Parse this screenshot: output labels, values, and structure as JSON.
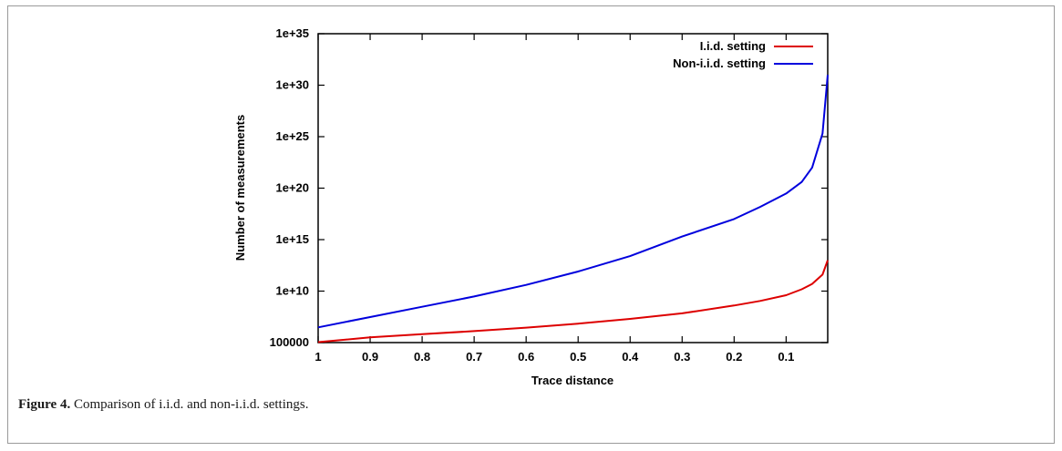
{
  "caption": {
    "label": "Figure 4.",
    "text": " Comparison of i.i.d. and non-i.i.d. settings."
  },
  "chart_data": {
    "type": "line",
    "title": "",
    "xlabel": "Trace distance",
    "ylabel": "Number of measurements",
    "x_reversed": true,
    "xlim": [
      1.0,
      0.02
    ],
    "xticks": [
      {
        "value": 1.0,
        "label": "1"
      },
      {
        "value": 0.9,
        "label": "0.9"
      },
      {
        "value": 0.8,
        "label": "0.8"
      },
      {
        "value": 0.7,
        "label": "0.7"
      },
      {
        "value": 0.6,
        "label": "0.6"
      },
      {
        "value": 0.5,
        "label": "0.5"
      },
      {
        "value": 0.4,
        "label": "0.4"
      },
      {
        "value": 0.3,
        "label": "0.3"
      },
      {
        "value": 0.2,
        "label": "0.2"
      },
      {
        "value": 0.1,
        "label": "0.1"
      }
    ],
    "y_scale": "log",
    "ylim": [
      100000,
      1e+35
    ],
    "yticks": [
      {
        "value": 100000,
        "label": "100000"
      },
      {
        "value": 10000000000.0,
        "label": "1e+10"
      },
      {
        "value": 1000000000000000.0,
        "label": "1e+15"
      },
      {
        "value": 1e+20,
        "label": "1e+20"
      },
      {
        "value": 1e+25,
        "label": "1e+25"
      },
      {
        "value": 1e+30,
        "label": "1e+30"
      },
      {
        "value": 1e+35,
        "label": "1e+35"
      }
    ],
    "legend_position": "top-right",
    "grid": false,
    "series": [
      {
        "name": "I.i.d. setting",
        "color": "#dd0000",
        "x": [
          1.0,
          0.9,
          0.8,
          0.7,
          0.6,
          0.5,
          0.4,
          0.3,
          0.2,
          0.15,
          0.1,
          0.07,
          0.05,
          0.03,
          0.02
        ],
        "y": [
          110000.0,
          320000.0,
          650000.0,
          1300000.0,
          2800000.0,
          7000000.0,
          20000000.0,
          70000000.0,
          400000000.0,
          1100000000.0,
          4000000000.0,
          15000000000.0,
          50000000000.0,
          400000000000.0,
          10000000000000.0
        ]
      },
      {
        "name": "Non-i.i.d. setting",
        "color": "#0000dd",
        "x": [
          1.0,
          0.9,
          0.8,
          0.7,
          0.6,
          0.5,
          0.4,
          0.3,
          0.2,
          0.15,
          0.1,
          0.07,
          0.05,
          0.03,
          0.02
        ],
        "y": [
          3000000.0,
          30000000.0,
          300000000.0,
          3000000000.0,
          40000000000.0,
          800000000000.0,
          25000000000000.0,
          2000000000000000.0,
          1e+17,
          1.5e+18,
          3e+19,
          4e+20,
          1e+22,
          2e+25,
          1e+31
        ]
      }
    ]
  }
}
